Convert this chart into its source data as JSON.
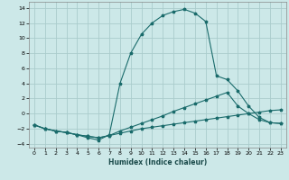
{
  "xlabel": "Humidex (Indice chaleur)",
  "bg_color": "#cce8e8",
  "grid_color": "#aacccc",
  "line_color": "#1a6b6b",
  "xlim": [
    -0.5,
    23.5
  ],
  "ylim": [
    -4.5,
    14.8
  ],
  "xticks": [
    0,
    1,
    2,
    3,
    4,
    5,
    6,
    7,
    8,
    9,
    10,
    11,
    12,
    13,
    14,
    15,
    16,
    17,
    18,
    19,
    20,
    21,
    22,
    23
  ],
  "yticks": [
    -4,
    -2,
    0,
    2,
    4,
    6,
    8,
    10,
    12,
    14
  ],
  "line1_x": [
    0,
    1,
    2,
    3,
    4,
    5,
    6,
    7,
    8,
    9,
    10,
    11,
    12,
    13,
    14,
    15,
    16,
    17,
    18,
    19,
    20,
    21,
    22,
    23
  ],
  "line1_y": [
    -1.5,
    -2.0,
    -2.3,
    -2.5,
    -2.8,
    -3.0,
    -3.2,
    -2.9,
    -2.6,
    -2.3,
    -2.0,
    -1.8,
    -1.6,
    -1.4,
    -1.2,
    -1.0,
    -0.8,
    -0.6,
    -0.4,
    -0.2,
    0.0,
    0.2,
    0.4,
    0.5
  ],
  "line2_x": [
    0,
    1,
    2,
    3,
    4,
    5,
    6,
    7,
    8,
    9,
    10,
    11,
    12,
    13,
    14,
    15,
    16,
    17,
    18,
    19,
    20,
    21,
    22,
    23
  ],
  "line2_y": [
    -1.5,
    -2.0,
    -2.3,
    -2.5,
    -2.8,
    -3.0,
    -3.2,
    -2.9,
    -2.3,
    -1.8,
    -1.3,
    -0.8,
    -0.3,
    0.3,
    0.8,
    1.3,
    1.8,
    2.3,
    2.8,
    1.0,
    -0.0,
    -0.8,
    -1.2,
    -1.3
  ],
  "line3_x": [
    0,
    1,
    2,
    3,
    4,
    5,
    6,
    7,
    8,
    9,
    10,
    11,
    12,
    13,
    14,
    15,
    16,
    17,
    18,
    19,
    20,
    21,
    22,
    23
  ],
  "line3_y": [
    -1.5,
    -2.0,
    -2.3,
    -2.5,
    -2.8,
    -3.2,
    -3.5,
    -2.8,
    4.0,
    8.0,
    10.5,
    12.0,
    13.0,
    13.5,
    13.8,
    13.3,
    12.2,
    5.0,
    4.5,
    3.0,
    1.0,
    -0.5,
    -1.2,
    -1.3
  ]
}
